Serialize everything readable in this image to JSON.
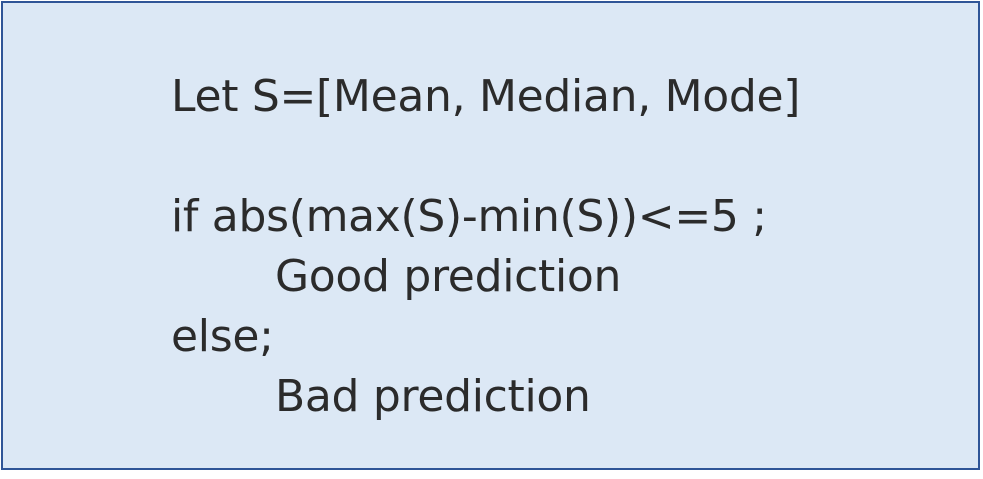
{
  "pseudocode": {
    "definition": "Let S=[Mean, Median, Mode]",
    "condition": "if abs(max(S)-min(S))<=5 ;",
    "then_result": "Good prediction",
    "else_keyword": "else;",
    "else_result": "Bad prediction"
  },
  "colors": {
    "panel_background": "#dce8f5",
    "panel_border": "#2f5597",
    "text": "#2b2b2b"
  }
}
